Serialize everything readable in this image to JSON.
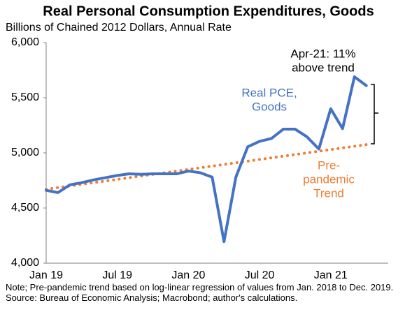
{
  "chart_data": {
    "type": "line",
    "title": "Real Personal Consumption Expenditures, Goods",
    "subtitle": "Billions of Chained 2012 Dollars, Annual Rate",
    "categories": [
      "Jan 19",
      null,
      null,
      null,
      null,
      null,
      "Jul 19",
      null,
      null,
      null,
      null,
      null,
      "Jan 20",
      null,
      null,
      null,
      null,
      null,
      "Jul 20",
      null,
      null,
      null,
      null,
      null,
      "Jan 21",
      null,
      null,
      null
    ],
    "series": [
      {
        "name": "Real PCE, Goods",
        "color": "#4472c4",
        "style": "solid",
        "values": [
          4660,
          4640,
          4710,
          4730,
          4755,
          4775,
          4795,
          4810,
          4805,
          4810,
          4810,
          4810,
          4835,
          4820,
          4780,
          4195,
          4780,
          5055,
          5105,
          5130,
          5215,
          5215,
          5145,
          5035,
          5400,
          5220,
          5690,
          5610
        ]
      },
      {
        "name": "Pre-pandemic Trend",
        "color": "#ed7d31",
        "style": "dotted",
        "values": [
          4670,
          4685,
          4700,
          4715,
          4730,
          4745,
          4760,
          4775,
          4790,
          4805,
          4820,
          4835,
          4850,
          4865,
          4880,
          4895,
          4910,
          4925,
          4940,
          4955,
          4970,
          4985,
          5000,
          5015,
          5030,
          5045,
          5060,
          5075
        ]
      }
    ],
    "ylim": [
      4000,
      6000
    ],
    "yticks": [
      {
        "value": 4000,
        "label": "4,000"
      },
      {
        "value": 4500,
        "label": "4,500"
      },
      {
        "value": 5000,
        "label": "5,000"
      },
      {
        "value": 5500,
        "label": "5,500"
      },
      {
        "value": 6000,
        "label": "6,000"
      }
    ],
    "annotations": [
      [
        "Apr-21: 11%",
        "above trend"
      ],
      [
        "Real PCE,",
        "Goods"
      ],
      [
        "Pre-",
        "pandemic",
        "Trend"
      ]
    ],
    "notes": [
      "Note; Pre-pandemic trend based on log-linear regression of values from Jan. 2018 to Dec. 2019.",
      "Source: Bureau of Economic Analysis; Macrobond; author's calculations."
    ]
  }
}
